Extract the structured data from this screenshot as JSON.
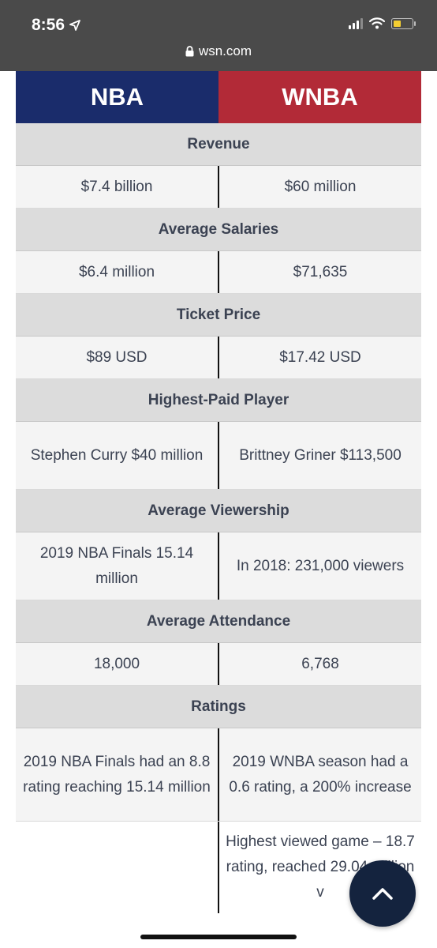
{
  "status_bar": {
    "time": "8:56"
  },
  "browser": {
    "url": "wsn.com"
  },
  "table": {
    "headers": [
      "NBA",
      "WNBA"
    ],
    "sections": [
      {
        "title": "Revenue",
        "nba": "$7.4 billion",
        "wnba": "$60 million"
      },
      {
        "title": "Average Salaries",
        "nba": "$6.4 million",
        "wnba": "$71,635"
      },
      {
        "title": "Ticket Price",
        "nba": "$89 USD",
        "wnba": "$17.42 USD"
      },
      {
        "title": "Highest-Paid Player",
        "nba": "Stephen Curry $40 million",
        "wnba": "Brittney Griner $113,500"
      },
      {
        "title": "Average Viewership",
        "nba": "2019 NBA Finals 15.14 million",
        "wnba": "In 2018: 231,000 viewers"
      },
      {
        "title": "Average Attendance",
        "nba": "18,000",
        "wnba": "6,768"
      },
      {
        "title": "Ratings",
        "nba": "2019 NBA Finals had an 8.8 rating reaching 15.14 million",
        "wnba": "2019 WNBA season had a 0.6 rating, a 200% increase"
      }
    ],
    "extra_row": {
      "nba": "",
      "wnba": "Highest viewed game – 18.7 rating, reached 29.04 million v"
    }
  },
  "colors": {
    "nba": "#1a2c6b",
    "wnba": "#b22a37",
    "fab": "#14233e"
  },
  "icons": {
    "location": "location-arrow-icon",
    "lock": "lock-icon",
    "fab": "chevron-up-icon"
  }
}
